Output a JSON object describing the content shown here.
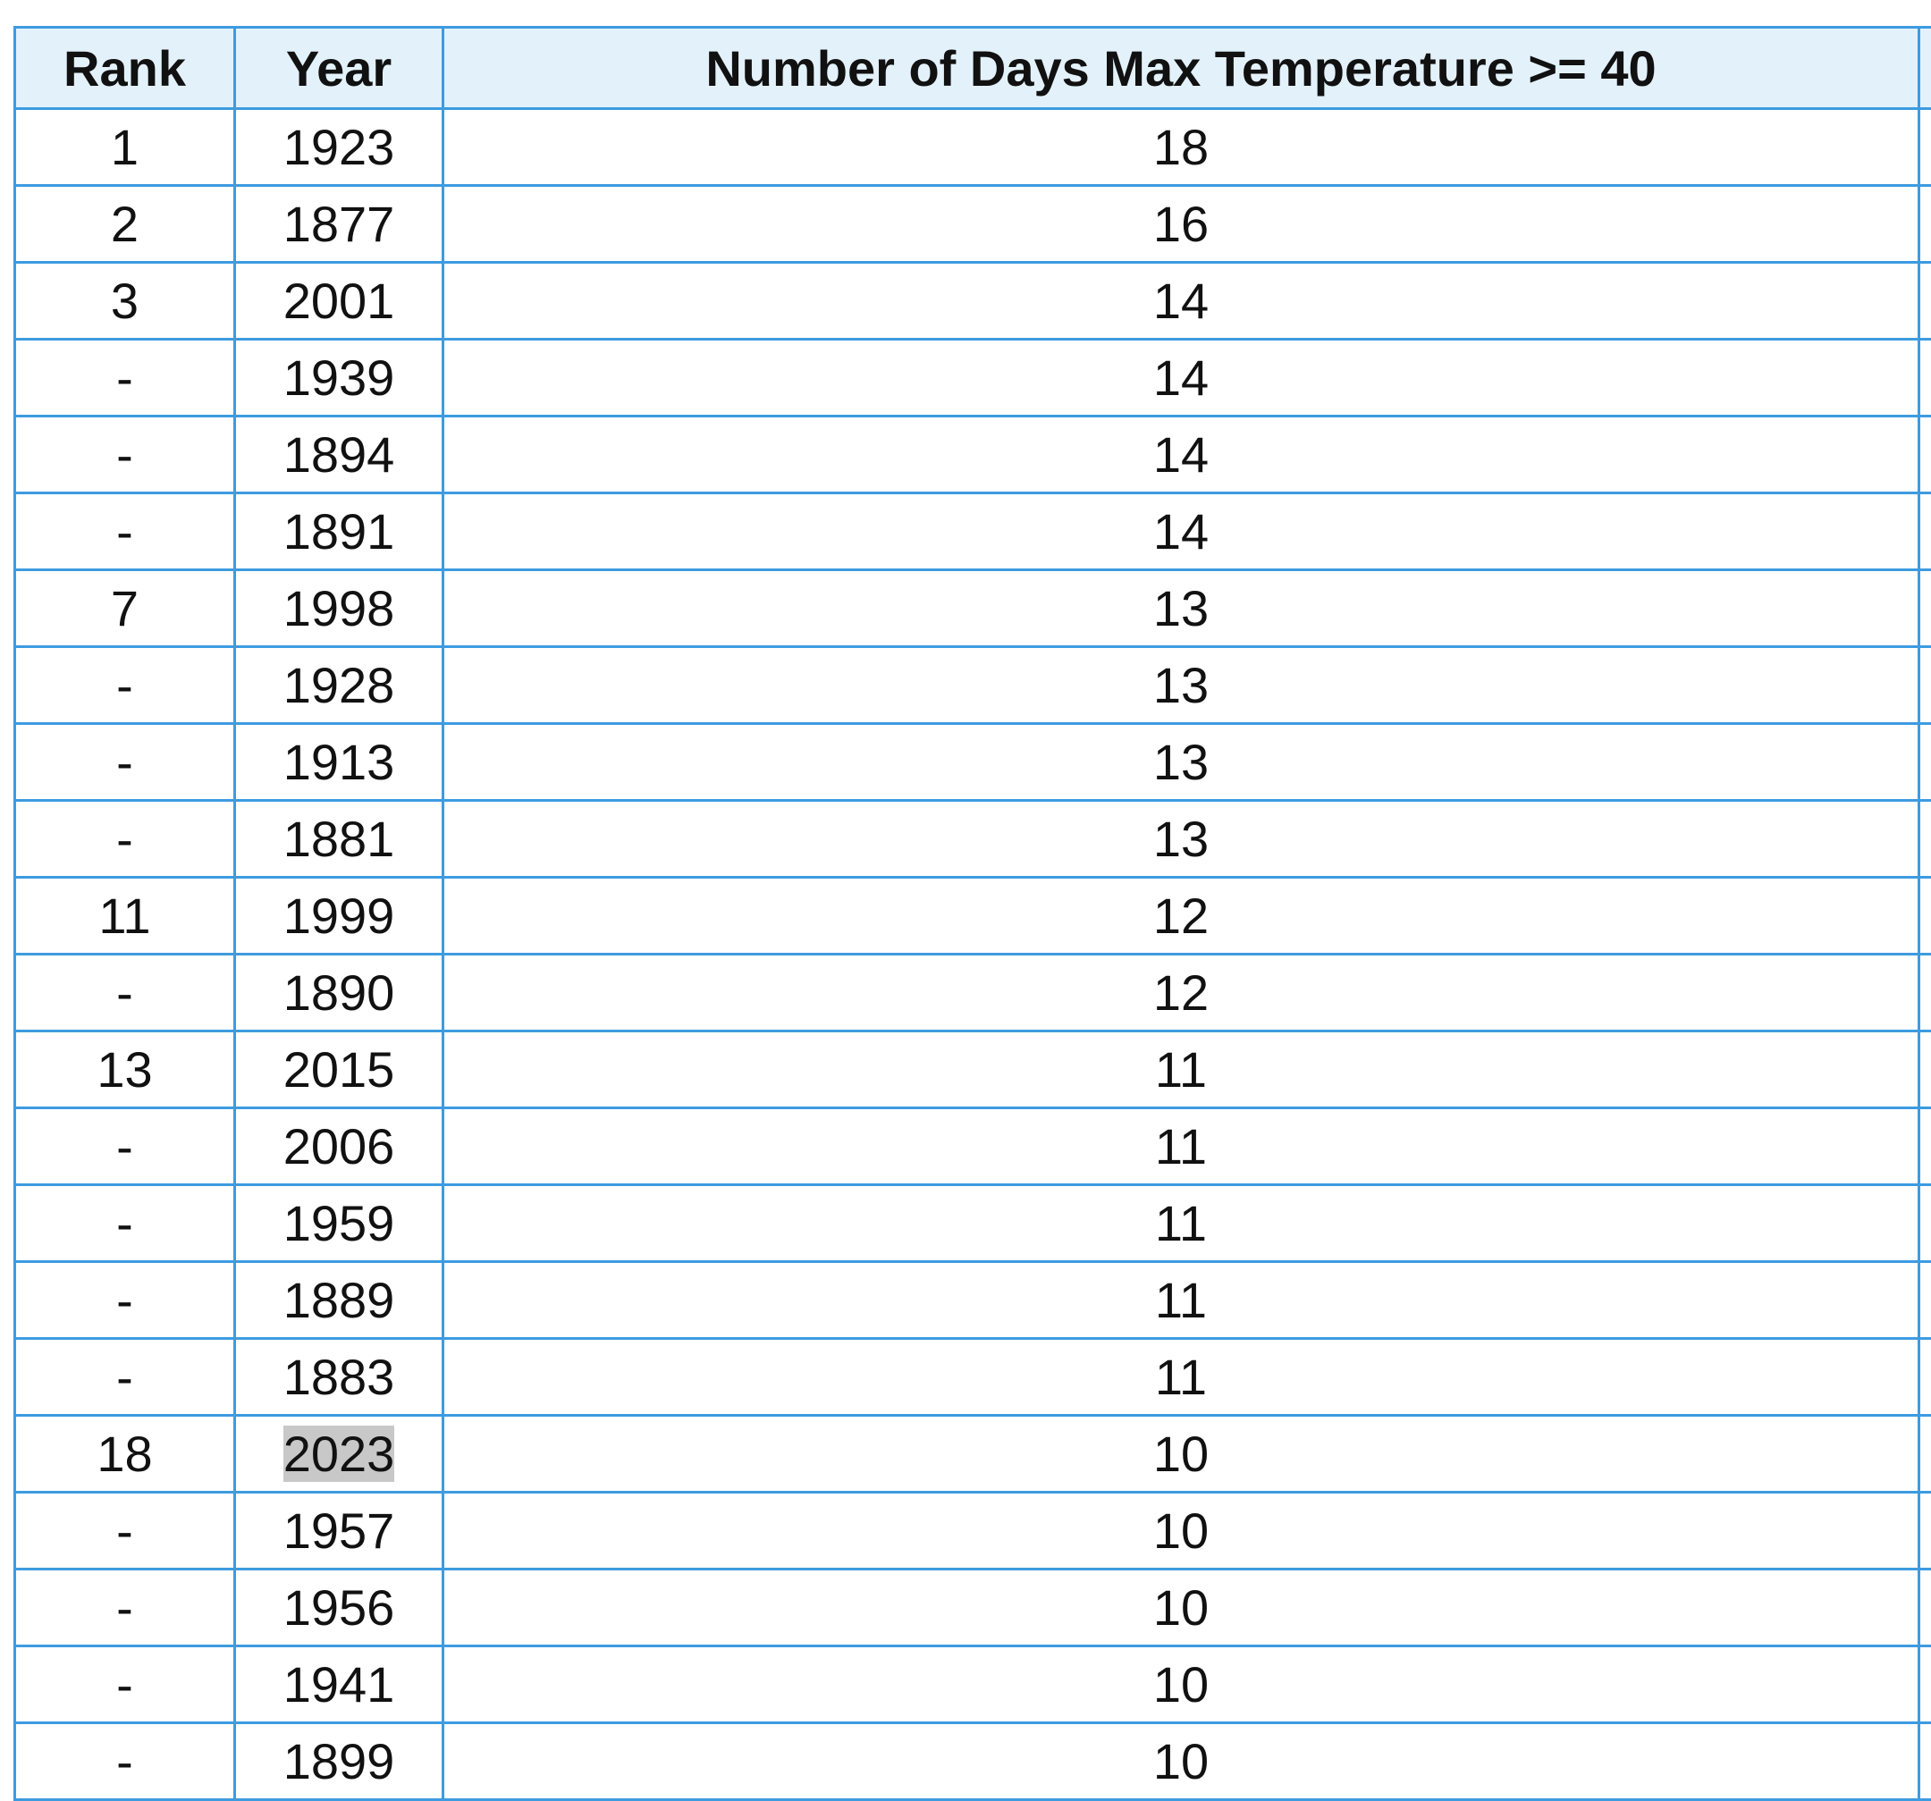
{
  "table": {
    "headers": [
      "Rank",
      "Year",
      "Number of Days Max Temperature >= 40"
    ],
    "rows": [
      {
        "rank": "1",
        "year": "1923",
        "days": "18"
      },
      {
        "rank": "2",
        "year": "1877",
        "days": "16"
      },
      {
        "rank": "3",
        "year": "2001",
        "days": "14"
      },
      {
        "rank": "-",
        "year": "1939",
        "days": "14"
      },
      {
        "rank": "-",
        "year": "1894",
        "days": "14"
      },
      {
        "rank": "-",
        "year": "1891",
        "days": "14"
      },
      {
        "rank": "7",
        "year": "1998",
        "days": "13"
      },
      {
        "rank": "-",
        "year": "1928",
        "days": "13"
      },
      {
        "rank": "-",
        "year": "1913",
        "days": "13"
      },
      {
        "rank": "-",
        "year": "1881",
        "days": "13"
      },
      {
        "rank": "11",
        "year": "1999",
        "days": "12"
      },
      {
        "rank": "-",
        "year": "1890",
        "days": "12"
      },
      {
        "rank": "13",
        "year": "2015",
        "days": "11"
      },
      {
        "rank": "-",
        "year": "2006",
        "days": "11"
      },
      {
        "rank": "-",
        "year": "1959",
        "days": "11"
      },
      {
        "rank": "-",
        "year": "1889",
        "days": "11"
      },
      {
        "rank": "-",
        "year": "1883",
        "days": "11"
      },
      {
        "rank": "18",
        "year": "2023",
        "days": "10",
        "highlighted": true
      },
      {
        "rank": "-",
        "year": "1957",
        "days": "10"
      },
      {
        "rank": "-",
        "year": "1956",
        "days": "10"
      },
      {
        "rank": "-",
        "year": "1941",
        "days": "10"
      },
      {
        "rank": "-",
        "year": "1899",
        "days": "10"
      }
    ]
  },
  "colors": {
    "border": "#3d9be0",
    "header_bg": "#e3f1fb",
    "highlight": "#c8c8c8"
  }
}
